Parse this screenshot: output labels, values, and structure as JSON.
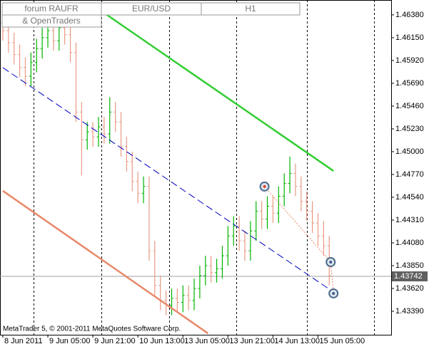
{
  "chart_data": {
    "type": "ohlc",
    "header": [
      "forum RAUFR",
      "EUR/USD",
      "H1"
    ],
    "subheader": "& OpenTraders",
    "footer": "MetaTrader 5, © 2001-2011 MetaQuotes Software Corp.",
    "up_color": "#00b400",
    "down_color": "#e89a84",
    "xlim": [
      -1,
      138
    ],
    "ylim": [
      1.43153,
      1.4653
    ],
    "xticks": [
      {
        "value": 0,
        "label": "8 Jun 2011"
      },
      {
        "value": 16,
        "label": "9 Jun 05:00"
      },
      {
        "value": 32,
        "label": "9 Jun 21:00"
      },
      {
        "value": 48,
        "label": "10 Jun 13:00"
      },
      {
        "value": 64,
        "label": "13 Jun 05:00"
      },
      {
        "value": 80,
        "label": "13 Jun 21:00"
      },
      {
        "value": 96,
        "label": "14 Jun 13:00"
      },
      {
        "value": 112,
        "label": "15 Jun 05:00"
      }
    ],
    "separators": [
      11,
      35,
      59,
      83,
      108,
      132
    ],
    "yticks": [
      {
        "value": 1.4638,
        "label": "1.46380"
      },
      {
        "value": 1.4615,
        "label": "1.46150"
      },
      {
        "value": 1.4592,
        "label": "1.45920"
      },
      {
        "value": 1.4569,
        "label": "1.45690"
      },
      {
        "value": 1.4546,
        "label": "1.45460"
      },
      {
        "value": 1.4523,
        "label": "1.45230"
      },
      {
        "value": 1.45,
        "label": "1.45000"
      },
      {
        "value": 1.4477,
        "label": "1.44770"
      },
      {
        "value": 1.4454,
        "label": "1.44540"
      },
      {
        "value": 1.4431,
        "label": "1.44310"
      },
      {
        "value": 1.4408,
        "label": "1.44080"
      },
      {
        "value": 1.4385,
        "label": "1.43850"
      },
      {
        "value": 1.4362,
        "label": "1.43620"
      },
      {
        "value": 1.4339,
        "label": "1.43390"
      }
    ],
    "price_line": {
      "value": 1.43742,
      "label": "1.43742"
    },
    "x": [
      0,
      2,
      4,
      6,
      8,
      10,
      12,
      14,
      16,
      18,
      20,
      22,
      24,
      26,
      28,
      30,
      32,
      34,
      36,
      38,
      40,
      42,
      44,
      46,
      48,
      50,
      52,
      54,
      56,
      58,
      60,
      62,
      64,
      66,
      68,
      70,
      72,
      74,
      76,
      78,
      80,
      82,
      84,
      86,
      88,
      90,
      92,
      94,
      96,
      98,
      100,
      102,
      104,
      106,
      108,
      110,
      112,
      114,
      116
    ],
    "bars": [
      [
        1.463,
        1.464,
        1.4612,
        1.4622
      ],
      [
        1.4622,
        1.4632,
        1.46,
        1.461
      ],
      [
        1.461,
        1.462,
        1.4588,
        1.4598
      ],
      [
        1.4598,
        1.4608,
        1.4575,
        1.4585
      ],
      [
        1.4585,
        1.4595,
        1.4566,
        1.4576
      ],
      [
        1.4576,
        1.46,
        1.4566,
        1.459
      ],
      [
        1.459,
        1.4614,
        1.458,
        1.4604
      ],
      [
        1.4604,
        1.4625,
        1.4594,
        1.4615
      ],
      [
        1.4615,
        1.4632,
        1.4605,
        1.4622
      ],
      [
        1.4622,
        1.4632,
        1.4602,
        1.4612
      ],
      [
        1.4612,
        1.4635,
        1.4602,
        1.4625
      ],
      [
        1.4625,
        1.4635,
        1.4608,
        1.4618
      ],
      [
        1.4618,
        1.4628,
        1.459,
        1.46
      ],
      [
        1.46,
        1.461,
        1.453,
        1.454
      ],
      [
        1.454,
        1.455,
        1.4476,
        1.4512
      ],
      [
        1.4512,
        1.453,
        1.4502,
        1.452
      ],
      [
        1.452,
        1.453,
        1.4505,
        1.4515
      ],
      [
        1.4515,
        1.4535,
        1.4505,
        1.4525
      ],
      [
        1.4525,
        1.4535,
        1.4508,
        1.4518
      ],
      [
        1.4518,
        1.4555,
        1.4508,
        1.454
      ],
      [
        1.454,
        1.455,
        1.452,
        1.453
      ],
      [
        1.453,
        1.454,
        1.4495,
        1.4505
      ],
      [
        1.4505,
        1.4515,
        1.448,
        1.449
      ],
      [
        1.449,
        1.45,
        1.446,
        1.447
      ],
      [
        1.447,
        1.448,
        1.4448,
        1.4458
      ],
      [
        1.4458,
        1.4475,
        1.4448,
        1.4465
      ],
      [
        1.4465,
        1.4475,
        1.439,
        1.44
      ],
      [
        1.44,
        1.441,
        1.4355,
        1.4365
      ],
      [
        1.4365,
        1.4375,
        1.434,
        1.435
      ],
      [
        1.435,
        1.436,
        1.4335,
        1.4345
      ],
      [
        1.4345,
        1.4362,
        1.4335,
        1.4352
      ],
      [
        1.4352,
        1.4362,
        1.4338,
        1.4348
      ],
      [
        1.4348,
        1.4365,
        1.4338,
        1.4355
      ],
      [
        1.4355,
        1.4365,
        1.434,
        1.435
      ],
      [
        1.435,
        1.4372,
        1.434,
        1.4362
      ],
      [
        1.4362,
        1.4385,
        1.4352,
        1.4375
      ],
      [
        1.4375,
        1.4395,
        1.4365,
        1.4385
      ],
      [
        1.4385,
        1.4395,
        1.4368,
        1.4378
      ],
      [
        1.4378,
        1.4392,
        1.4368,
        1.4382
      ],
      [
        1.4382,
        1.4405,
        1.4372,
        1.4395
      ],
      [
        1.4395,
        1.4425,
        1.4385,
        1.4415
      ],
      [
        1.4415,
        1.4435,
        1.4405,
        1.4425
      ],
      [
        1.4425,
        1.4435,
        1.44,
        1.441
      ],
      [
        1.441,
        1.442,
        1.439,
        1.44
      ],
      [
        1.44,
        1.443,
        1.439,
        1.442
      ],
      [
        1.442,
        1.445,
        1.441,
        1.444
      ],
      [
        1.444,
        1.445,
        1.4422,
        1.4432
      ],
      [
        1.4432,
        1.4455,
        1.4422,
        1.4445
      ],
      [
        1.4445,
        1.4455,
        1.4428,
        1.4438
      ],
      [
        1.4438,
        1.4465,
        1.4428,
        1.4455
      ],
      [
        1.4455,
        1.4478,
        1.4445,
        1.4468
      ],
      [
        1.4468,
        1.4495,
        1.4458,
        1.4478
      ],
      [
        1.4478,
        1.4488,
        1.4455,
        1.4465
      ],
      [
        1.4465,
        1.4475,
        1.444,
        1.445
      ],
      [
        1.445,
        1.446,
        1.443,
        1.444
      ],
      [
        1.444,
        1.445,
        1.4418,
        1.4428
      ],
      [
        1.4428,
        1.4438,
        1.4405,
        1.4415
      ],
      [
        1.4415,
        1.443,
        1.4395,
        1.4405
      ],
      [
        1.4405,
        1.4415,
        1.4365,
        1.4375
      ]
    ],
    "lines": [
      {
        "color": "#32cd32",
        "dash": false,
        "x": [
          34.8,
          117.5
        ],
        "values": [
          1.46423,
          1.44806
        ]
      },
      {
        "color": "#0000c0",
        "dash": true,
        "x": [
          0,
          117.5
        ],
        "values": [
          1.45848,
          1.43584
        ]
      },
      {
        "color": "#e8896a",
        "dash": false,
        "x": [
          0,
          72.9
        ],
        "values": [
          1.44605,
          1.43167
        ]
      }
    ],
    "markers": {
      "color": "#e8896a",
      "x": [
        93,
        116.5,
        117.5
      ],
      "values": [
        1.44648,
        1.43886,
        1.4357
      ]
    }
  }
}
